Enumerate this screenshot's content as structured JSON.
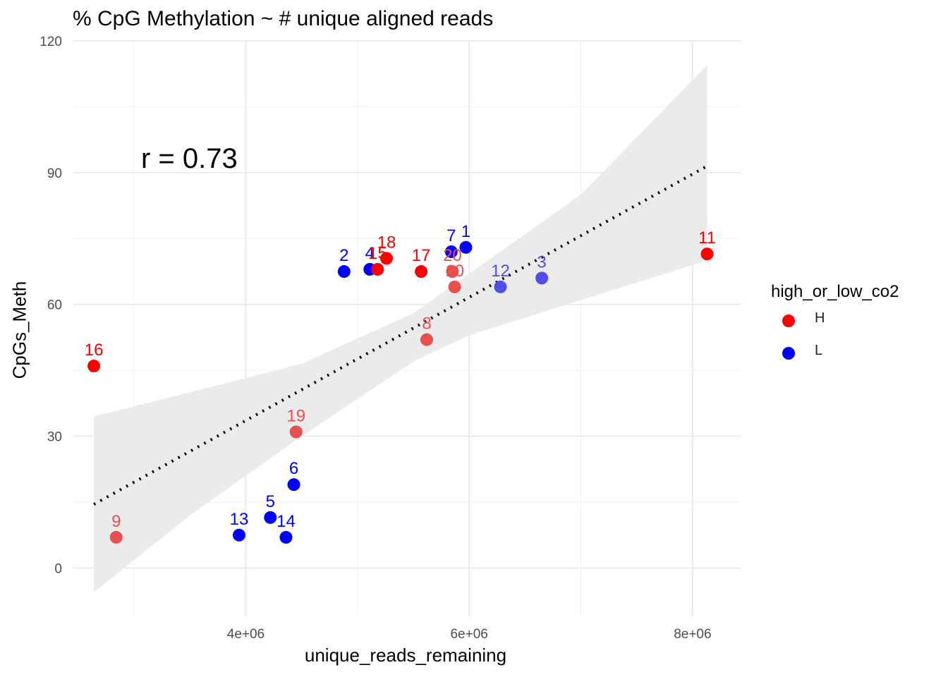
{
  "chart_data": {
    "type": "scatter",
    "title": "% CpG Methylation ~ # unique aligned reads",
    "xlabel": "unique_reads_remaining",
    "ylabel": "CpGs_Meth",
    "annotation": "r = 0.73",
    "xlim": [
      2450000,
      8430000
    ],
    "ylim": [
      -11,
      120
    ],
    "x_ticks": [
      4000000,
      6000000,
      8000000
    ],
    "x_tick_labels": [
      "4e+06",
      "6e+06",
      "8e+06"
    ],
    "y_ticks": [
      0,
      30,
      60,
      90,
      120
    ],
    "y_tick_labels": [
      "0",
      "30",
      "60",
      "90",
      "120"
    ],
    "grid": true,
    "legend": {
      "title": "high_or_low_co2",
      "position": "right",
      "entries": [
        {
          "label": "H",
          "color": "#FF0000"
        },
        {
          "label": "L",
          "color": "#0000FF"
        }
      ]
    },
    "colors": {
      "H": "#FF0000",
      "L": "#0000FF",
      "H_faded": "#E85050",
      "L_faded": "#5050E8"
    },
    "points": [
      {
        "label": "1",
        "x": 5970000,
        "y": 73.0,
        "group": "L",
        "faded": false
      },
      {
        "label": "2",
        "x": 4880000,
        "y": 67.5,
        "group": "L",
        "faded": false
      },
      {
        "label": "3",
        "x": 6650000,
        "y": 66.0,
        "group": "L",
        "faded": true
      },
      {
        "label": "4",
        "x": 5110000,
        "y": 68.0,
        "group": "L",
        "faded": false
      },
      {
        "label": "5",
        "x": 4220000,
        "y": 11.5,
        "group": "L",
        "faded": false
      },
      {
        "label": "6",
        "x": 4430000,
        "y": 19.0,
        "group": "L",
        "faded": false
      },
      {
        "label": "7",
        "x": 5840000,
        "y": 72.0,
        "group": "L",
        "faded": false
      },
      {
        "label": "8",
        "x": 5620000,
        "y": 52.0,
        "group": "H",
        "faded": true
      },
      {
        "label": "9",
        "x": 2840000,
        "y": 7.0,
        "group": "H",
        "faded": true
      },
      {
        "label": "10",
        "x": 5870000,
        "y": 64.0,
        "group": "H",
        "faded": true
      },
      {
        "label": "11",
        "x": 8130000,
        "y": 71.5,
        "group": "H",
        "faded": false
      },
      {
        "label": "12",
        "x": 6280000,
        "y": 64.0,
        "group": "L",
        "faded": true
      },
      {
        "label": "13",
        "x": 3940000,
        "y": 7.5,
        "group": "L",
        "faded": false
      },
      {
        "label": "14",
        "x": 4360000,
        "y": 7.0,
        "group": "L",
        "faded": false
      },
      {
        "label": "15",
        "x": 5180000,
        "y": 68.0,
        "group": "H",
        "faded": false
      },
      {
        "label": "16",
        "x": 2640000,
        "y": 46.0,
        "group": "H",
        "faded": false
      },
      {
        "label": "17",
        "x": 5570000,
        "y": 67.5,
        "group": "H",
        "faded": false
      },
      {
        "label": "18",
        "x": 5260000,
        "y": 70.5,
        "group": "H",
        "faded": false
      },
      {
        "label": "19",
        "x": 4450000,
        "y": 31.0,
        "group": "H",
        "faded": true
      },
      {
        "label": "20",
        "x": 5850000,
        "y": 67.5,
        "group": "H",
        "faded": true
      }
    ],
    "fit_line": {
      "x": [
        2640000,
        8130000
      ],
      "y": [
        14.5,
        91.5
      ],
      "style": "dotted"
    },
    "confidence_band": {
      "x": [
        2640000,
        3500000,
        4500000,
        5500000,
        6000000,
        7000000,
        8130000
      ],
      "upper": [
        34.5,
        40.0,
        46.5,
        58.0,
        67.0,
        85.0,
        114.5
      ],
      "lower": [
        -5.5,
        12.0,
        30.0,
        47.0,
        53.0,
        61.0,
        70.0
      ]
    }
  }
}
